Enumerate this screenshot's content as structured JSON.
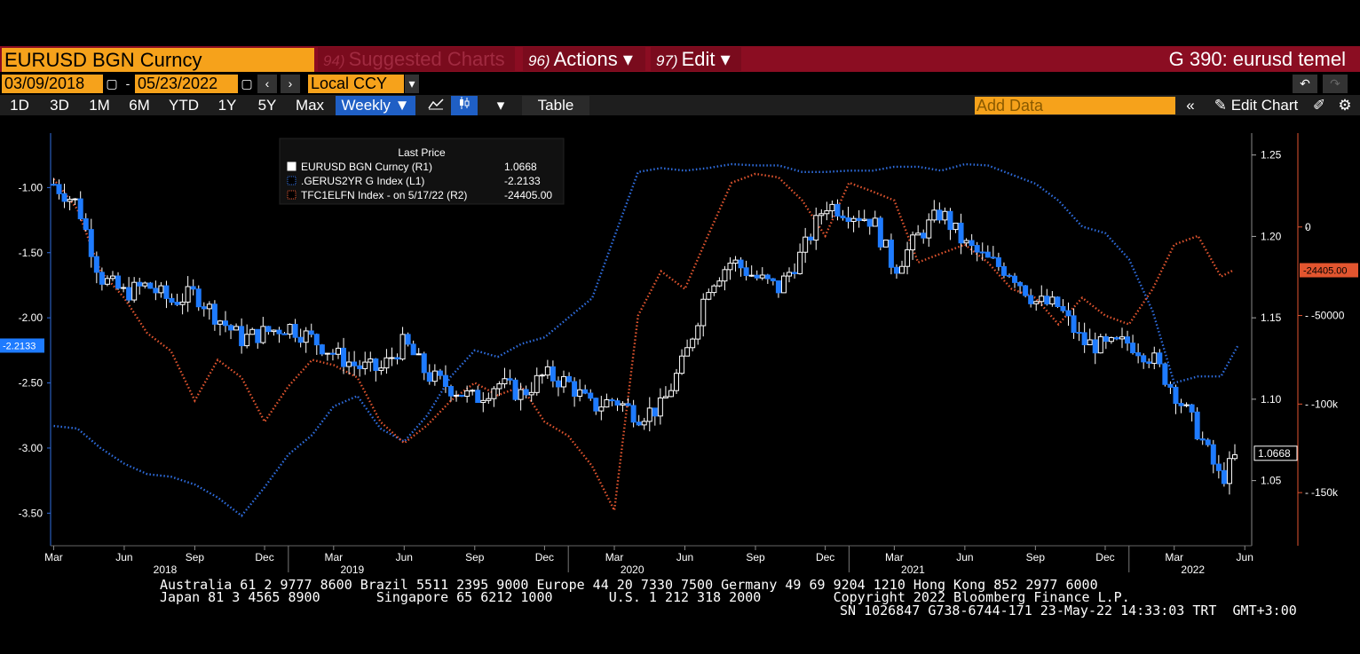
{
  "header": {
    "ticker": "EURUSD BGN Curncy",
    "menus": [
      {
        "num": "94)",
        "label": "Suggested Charts"
      },
      {
        "num": "96)",
        "label": "Actions ▾"
      },
      {
        "num": "97)",
        "label": "Edit ▾"
      }
    ],
    "title": "G 390: eurusd temel"
  },
  "dates": {
    "start": "03/09/2018",
    "end": "05/23/2022",
    "currency": "Local CCY"
  },
  "toolbar": {
    "periods": [
      "1D",
      "3D",
      "1M",
      "6M",
      "YTD",
      "1Y",
      "5Y",
      "Max"
    ],
    "frequency": "Weekly ▼",
    "table": "Table",
    "add_data_placeholder": "Add Data",
    "edit_chart": "Edit Chart"
  },
  "colors": {
    "eurusd": "#ffffff",
    "eurusd_down": "#1e7bff",
    "gerus2yr": "#2f6ee0",
    "tfc": "#e2552f",
    "header_bg": "#8b0d22",
    "accent": "#f6a21b"
  },
  "chart_data": {
    "type": "line",
    "title": "Last Price",
    "legend": [
      {
        "name": "EURUSD BGN Curncy  (R1)",
        "value": "1.0668"
      },
      {
        "name": ".GERUS2YR G Index  (L1)",
        "value": "-2.2133"
      },
      {
        "name": "TFC1ELFN Index -  on 5/17/22  (R2)",
        "value": "-24405.00"
      }
    ],
    "x_ticks": [
      "Mar",
      "Jun",
      "Sep",
      "Dec",
      "Mar",
      "Jun",
      "Sep",
      "Dec",
      "Mar",
      "Jun",
      "Sep",
      "Dec",
      "Mar",
      "Jun",
      "Sep",
      "Dec",
      "Mar",
      "Jun"
    ],
    "x_tick_dates": [
      "2018-03-01",
      "2018-06-01",
      "2018-09-01",
      "2018-12-01",
      "2019-03-01",
      "2019-06-01",
      "2019-09-01",
      "2019-12-01",
      "2020-03-01",
      "2020-06-01",
      "2020-09-01",
      "2020-12-01",
      "2021-03-01",
      "2021-06-01",
      "2021-09-01",
      "2021-12-01",
      "2022-03-01",
      "2022-06-01"
    ],
    "years": [
      "2018",
      "2019",
      "2020",
      "2021",
      "2022"
    ],
    "x_range": [
      "2018-02-25",
      "2022-06-10"
    ],
    "left_axis": {
      "ticks": [
        "-1.00",
        "-1.50",
        "-2.00",
        "-2.50",
        "-3.00",
        "-3.50"
      ],
      "range": [
        -3.75,
        -0.65
      ],
      "last_label": "-2.2133"
    },
    "right1_axis": {
      "ticks": [
        "1.25",
        "1.20",
        "1.15",
        "1.10",
        "1.05"
      ],
      "range": [
        1.01,
        1.258
      ],
      "last_label": "1.0668"
    },
    "right2_axis": {
      "ticks": [
        "0",
        "-50000",
        "-100k",
        "-150k"
      ],
      "values": [
        0,
        -50000,
        -100000,
        -150000
      ],
      "range": [
        -180000,
        48000
      ],
      "last_label": "-24405.00"
    },
    "series": [
      {
        "name": ".GERUS2YR G Index  (L1)",
        "axis": "left",
        "style": "dotted",
        "points": [
          [
            "2018-03-01",
            -2.83
          ],
          [
            "2018-04-01",
            -2.85
          ],
          [
            "2018-05-01",
            -3.0
          ],
          [
            "2018-06-01",
            -3.12
          ],
          [
            "2018-07-01",
            -3.2
          ],
          [
            "2018-08-01",
            -3.22
          ],
          [
            "2018-09-01",
            -3.28
          ],
          [
            "2018-10-01",
            -3.38
          ],
          [
            "2018-11-01",
            -3.52
          ],
          [
            "2018-12-01",
            -3.3
          ],
          [
            "2019-01-01",
            -3.05
          ],
          [
            "2019-02-01",
            -2.9
          ],
          [
            "2019-03-01",
            -2.68
          ],
          [
            "2019-04-01",
            -2.6
          ],
          [
            "2019-05-01",
            -2.85
          ],
          [
            "2019-06-01",
            -2.95
          ],
          [
            "2019-07-01",
            -2.75
          ],
          [
            "2019-08-01",
            -2.45
          ],
          [
            "2019-09-01",
            -2.25
          ],
          [
            "2019-10-01",
            -2.3
          ],
          [
            "2019-11-01",
            -2.2
          ],
          [
            "2019-12-01",
            -2.15
          ],
          [
            "2020-01-01",
            -2.0
          ],
          [
            "2020-02-01",
            -1.85
          ],
          [
            "2020-03-01",
            -1.38
          ],
          [
            "2020-04-01",
            -0.88
          ],
          [
            "2020-05-01",
            -0.85
          ],
          [
            "2020-06-01",
            -0.87
          ],
          [
            "2020-07-01",
            -0.85
          ],
          [
            "2020-08-01",
            -0.82
          ],
          [
            "2020-09-01",
            -0.83
          ],
          [
            "2020-10-01",
            -0.83
          ],
          [
            "2020-11-01",
            -0.88
          ],
          [
            "2020-12-01",
            -0.88
          ],
          [
            "2021-01-01",
            -0.87
          ],
          [
            "2021-02-01",
            -0.87
          ],
          [
            "2021-03-01",
            -0.84
          ],
          [
            "2021-04-01",
            -0.84
          ],
          [
            "2021-05-01",
            -0.87
          ],
          [
            "2021-06-01",
            -0.82
          ],
          [
            "2021-07-01",
            -0.83
          ],
          [
            "2021-08-01",
            -0.9
          ],
          [
            "2021-09-01",
            -0.97
          ],
          [
            "2021-10-01",
            -1.1
          ],
          [
            "2021-11-01",
            -1.3
          ],
          [
            "2021-12-01",
            -1.35
          ],
          [
            "2022-01-01",
            -1.55
          ],
          [
            "2022-02-01",
            -1.95
          ],
          [
            "2022-03-01",
            -2.5
          ],
          [
            "2022-04-01",
            -2.45
          ],
          [
            "2022-05-01",
            -2.45
          ],
          [
            "2022-05-23",
            -2.2133
          ]
        ]
      },
      {
        "name": "TFC1ELFN Index -  on 5/17/22  (R2)",
        "axis": "right2",
        "style": "dotted",
        "points": [
          [
            "2018-03-01",
            27000
          ],
          [
            "2018-04-01",
            10000
          ],
          [
            "2018-05-01",
            -25000
          ],
          [
            "2018-06-01",
            -40000
          ],
          [
            "2018-07-01",
            -60000
          ],
          [
            "2018-08-01",
            -70000
          ],
          [
            "2018-09-01",
            -98000
          ],
          [
            "2018-10-01",
            -75000
          ],
          [
            "2018-11-01",
            -85000
          ],
          [
            "2018-12-01",
            -110000
          ],
          [
            "2019-01-01",
            -90000
          ],
          [
            "2019-02-01",
            -75000
          ],
          [
            "2019-03-01",
            -78000
          ],
          [
            "2019-04-01",
            -85000
          ],
          [
            "2019-05-01",
            -110000
          ],
          [
            "2019-06-01",
            -122000
          ],
          [
            "2019-07-01",
            -112000
          ],
          [
            "2019-08-01",
            -98000
          ],
          [
            "2019-09-01",
            -88000
          ],
          [
            "2019-10-01",
            -95000
          ],
          [
            "2019-11-01",
            -90000
          ],
          [
            "2019-12-01",
            -110000
          ],
          [
            "2020-01-01",
            -118000
          ],
          [
            "2020-02-01",
            -135000
          ],
          [
            "2020-03-01",
            -160000
          ],
          [
            "2020-04-01",
            -50000
          ],
          [
            "2020-05-01",
            -25000
          ],
          [
            "2020-06-01",
            -35000
          ],
          [
            "2020-07-01",
            -5000
          ],
          [
            "2020-08-01",
            25000
          ],
          [
            "2020-09-01",
            30000
          ],
          [
            "2020-10-01",
            28000
          ],
          [
            "2020-11-01",
            15000
          ],
          [
            "2020-12-01",
            -5000
          ],
          [
            "2021-01-01",
            25000
          ],
          [
            "2021-02-01",
            20000
          ],
          [
            "2021-03-01",
            15000
          ],
          [
            "2021-04-01",
            -20000
          ],
          [
            "2021-05-01",
            -15000
          ],
          [
            "2021-06-01",
            -10000
          ],
          [
            "2021-07-01",
            -20000
          ],
          [
            "2021-08-01",
            -35000
          ],
          [
            "2021-09-01",
            -40000
          ],
          [
            "2021-10-01",
            -55000
          ],
          [
            "2021-11-01",
            -40000
          ],
          [
            "2021-12-01",
            -50000
          ],
          [
            "2022-01-01",
            -55000
          ],
          [
            "2022-02-01",
            -35000
          ],
          [
            "2022-03-01",
            -10000
          ],
          [
            "2022-04-01",
            -5000
          ],
          [
            "2022-05-01",
            -28000
          ],
          [
            "2022-05-17",
            -24405
          ]
        ]
      }
    ],
    "candles": {
      "name": "EURUSD BGN Curncy  (R1)",
      "axis": "right1",
      "frequency": "weekly",
      "monthly_close": [
        [
          "2018-03-01",
          1.232
        ],
        [
          "2018-04-01",
          1.22
        ],
        [
          "2018-05-01",
          1.175
        ],
        [
          "2018-06-01",
          1.165
        ],
        [
          "2018-07-01",
          1.17
        ],
        [
          "2018-08-01",
          1.16
        ],
        [
          "2018-09-01",
          1.165
        ],
        [
          "2018-10-01",
          1.15
        ],
        [
          "2018-11-01",
          1.137
        ],
        [
          "2018-12-01",
          1.141
        ],
        [
          "2019-01-01",
          1.145
        ],
        [
          "2019-02-01",
          1.137
        ],
        [
          "2019-03-01",
          1.128
        ],
        [
          "2019-04-01",
          1.12
        ],
        [
          "2019-05-01",
          1.118
        ],
        [
          "2019-06-01",
          1.135
        ],
        [
          "2019-07-01",
          1.115
        ],
        [
          "2019-08-01",
          1.107
        ],
        [
          "2019-09-01",
          1.1
        ],
        [
          "2019-10-01",
          1.11
        ],
        [
          "2019-11-01",
          1.103
        ],
        [
          "2019-12-01",
          1.115
        ],
        [
          "2020-01-01",
          1.11
        ],
        [
          "2020-02-01",
          1.095
        ],
        [
          "2020-03-01",
          1.1
        ],
        [
          "2020-04-01",
          1.09
        ],
        [
          "2020-05-01",
          1.095
        ],
        [
          "2020-06-01",
          1.125
        ],
        [
          "2020-07-01",
          1.17
        ],
        [
          "2020-08-01",
          1.185
        ],
        [
          "2020-09-01",
          1.175
        ],
        [
          "2020-10-01",
          1.168
        ],
        [
          "2020-11-01",
          1.19
        ],
        [
          "2020-12-01",
          1.22
        ],
        [
          "2021-01-01",
          1.215
        ],
        [
          "2021-02-01",
          1.21
        ],
        [
          "2021-03-01",
          1.18
        ],
        [
          "2021-04-01",
          1.2
        ],
        [
          "2021-05-01",
          1.215
        ],
        [
          "2021-06-01",
          1.195
        ],
        [
          "2021-07-01",
          1.185
        ],
        [
          "2021-08-01",
          1.178
        ],
        [
          "2021-09-01",
          1.16
        ],
        [
          "2021-10-01",
          1.157
        ],
        [
          "2021-11-01",
          1.135
        ],
        [
          "2021-12-01",
          1.132
        ],
        [
          "2022-01-01",
          1.135
        ],
        [
          "2022-02-01",
          1.125
        ],
        [
          "2022-03-01",
          1.105
        ],
        [
          "2022-04-01",
          1.08
        ],
        [
          "2022-05-01",
          1.05
        ],
        [
          "2022-05-23",
          1.0668
        ]
      ]
    }
  },
  "footer": {
    "line1": "Australia 61 2 9777 8600 Brazil 5511 2395 9000 Europe 44 20 7330 7500 Germany 49 69 9204 1210 Hong Kong 852 2977 6000",
    "line2": "Japan 81 3 4565 8900       Singapore 65 6212 1000       U.S. 1 212 318 2000         Copyright 2022 Bloomberg Finance L.P.",
    "line3": "SN 1026847 G738-6744-171 23-May-22 14:33:03 TRT  GMT+3:00"
  }
}
